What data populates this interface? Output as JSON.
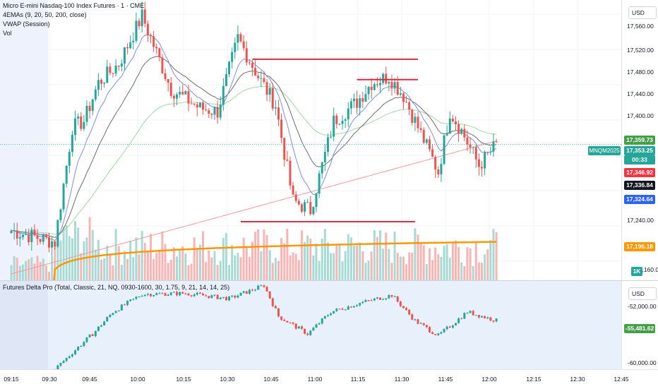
{
  "main_pane": {
    "title": "Micro E-mini Nasdaq-100 Index Futures · 1 · CME",
    "indicators": [
      "4EMAs (9, 20, 50, 200, close)",
      "VWAP (Session)",
      "Vol"
    ],
    "symbol_tag": "MNQM2025"
  },
  "price_axis": {
    "currency_button": "USD",
    "ticks": [
      "17,560.00",
      "17,520.00",
      "17,480.00",
      "17,440.00",
      "17,400.00",
      "17,240.00",
      "17,160.00"
    ],
    "badges": [
      {
        "text": "17,359.73",
        "color": "#43a047"
      },
      {
        "text": "17,353.25",
        "color": "#26a69a"
      },
      {
        "text": "00:33",
        "color": "#26a69a"
      },
      {
        "text": "17,346.92",
        "color": "#f23645"
      },
      {
        "text": "17,336.84",
        "color": "#131722"
      },
      {
        "text": "17,324.64",
        "color": "#2962ff"
      },
      {
        "text": "17,196.18",
        "color": "#ff9800"
      },
      {
        "text": "1K",
        "color": "#26a69a"
      }
    ]
  },
  "lower_pane": {
    "title": "Futures Delta Pro (Total, Classic, 21, NQ, 0930-1600, 30, 1.75, 9, 21, 14, 14, 25)",
    "currency_button": "USD",
    "ticks": [
      "-52,000.00",
      "-60,000.00"
    ],
    "value_badge": {
      "text": "-55,481.62",
      "color": "#43a047"
    }
  },
  "time_axis": {
    "labels": [
      "09:15",
      "09:30",
      "09:45",
      "10:00",
      "10:15",
      "10:30",
      "10:45",
      "11:00",
      "11:15",
      "11:30",
      "11:45",
      "12:00",
      "12:15",
      "12:30",
      "12:45"
    ]
  },
  "colors": {
    "up": "#26a69a",
    "down": "#ef5350",
    "ema9": "#7b8fe0",
    "ema20": "#6d6d6d",
    "ema50": "#a5d6a7",
    "ema200": "#ef9a9a",
    "vwap": "#ff9800",
    "levels": "#d32f45"
  },
  "chart_data": [
    {
      "type": "candlestick",
      "title": "Micro E-mini Nasdaq-100 Index Futures · 1 · CME",
      "ylabel": "",
      "ylim": [
        17140,
        17580
      ],
      "x_range": [
        "09:15",
        "12:45"
      ],
      "keypoints": [
        {
          "t": "09:15",
          "close": 17218
        },
        {
          "t": "09:30",
          "close": 17200
        },
        {
          "t": "09:36",
          "close": 17380
        },
        {
          "t": "09:40",
          "close": 17390
        },
        {
          "t": "09:45",
          "close": 17450
        },
        {
          "t": "09:52",
          "close": 17480
        },
        {
          "t": "10:00",
          "close": 17555
        },
        {
          "t": "10:10",
          "close": 17440
        },
        {
          "t": "10:20",
          "close": 17410
        },
        {
          "t": "10:26",
          "close": 17405
        },
        {
          "t": "10:33",
          "close": 17520
        },
        {
          "t": "10:40",
          "close": 17460
        },
        {
          "t": "10:46",
          "close": 17415
        },
        {
          "t": "10:52",
          "close": 17265
        },
        {
          "t": "10:58",
          "close": 17250
        },
        {
          "t": "11:06",
          "close": 17390
        },
        {
          "t": "11:14",
          "close": 17420
        },
        {
          "t": "11:19",
          "close": 17450
        },
        {
          "t": "11:25",
          "close": 17460
        },
        {
          "t": "11:30",
          "close": 17430
        },
        {
          "t": "11:35",
          "close": 17380
        },
        {
          "t": "11:42",
          "close": 17310
        },
        {
          "t": "11:46",
          "close": 17405
        },
        {
          "t": "11:50",
          "close": 17375
        },
        {
          "t": "11:56",
          "close": 17320
        },
        {
          "t": "12:02",
          "close": 17353
        }
      ],
      "horizontal_levels": [
        {
          "price": 17487,
          "from": "10:38",
          "to": "11:35"
        },
        {
          "price": 17455,
          "from": "11:14",
          "to": "11:35"
        },
        {
          "price": 17232,
          "from": "10:34",
          "to": "11:34"
        }
      ],
      "series": [
        {
          "name": "17,359.73",
          "last": 17359.73
        },
        {
          "name": "17,346.92",
          "last": 17346.92
        },
        {
          "name": "17,336.84",
          "last": 17336.84
        },
        {
          "name": "17,324.64",
          "last": 17324.64
        },
        {
          "name": "17,196.18",
          "last": 17196.18
        }
      ]
    },
    {
      "type": "candlestick",
      "title": "Futures Delta Pro (Total, Classic, 21, NQ, 0930-1600, 30, 1.75, 9, 21, 14, 14, 25)",
      "ylim": [
        -61000,
        -51000
      ],
      "keypoints": [
        {
          "t": "09:30",
          "close": -61000
        },
        {
          "t": "09:38",
          "close": -58500
        },
        {
          "t": "09:43",
          "close": -57000
        },
        {
          "t": "09:50",
          "close": -54500
        },
        {
          "t": "10:00",
          "close": -52500
        },
        {
          "t": "10:15",
          "close": -52400
        },
        {
          "t": "10:30",
          "close": -53000
        },
        {
          "t": "10:42",
          "close": -51500
        },
        {
          "t": "10:47",
          "close": -55000
        },
        {
          "t": "10:57",
          "close": -57000
        },
        {
          "t": "11:05",
          "close": -54500
        },
        {
          "t": "11:15",
          "close": -53500
        },
        {
          "t": "11:26",
          "close": -52600
        },
        {
          "t": "11:34",
          "close": -55500
        },
        {
          "t": "11:42",
          "close": -57200
        },
        {
          "t": "11:52",
          "close": -54500
        },
        {
          "t": "12:02",
          "close": -55481.62
        }
      ],
      "last": -55481.62
    }
  ]
}
